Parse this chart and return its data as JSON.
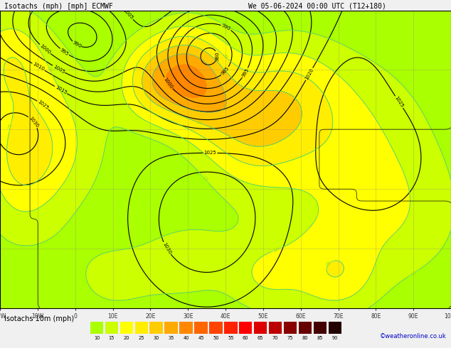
{
  "title_line1": "Isotachs (mph) [mph] ECMWF",
  "title_line2": "We 05-06-2024 00:00 UTC (T12+180)",
  "legend_title": "Isotachs 10m (mph)",
  "credit": "©weatheronline.co.uk",
  "legend_values": [
    10,
    15,
    20,
    25,
    30,
    35,
    40,
    45,
    50,
    55,
    60,
    65,
    70,
    75,
    80,
    85,
    90
  ],
  "legend_colors": [
    "#aaff00",
    "#ccff00",
    "#ffff00",
    "#ffee00",
    "#ffcc00",
    "#ffaa00",
    "#ff8800",
    "#ff6600",
    "#ff4400",
    "#ff2200",
    "#ff0000",
    "#dd0000",
    "#bb0000",
    "#880000",
    "#660000",
    "#440000",
    "#220000"
  ],
  "sea_color": "#d8d8d8",
  "land_color": "#e8e8e8",
  "green_land_color": "#c8e8a0",
  "grid_color": "#888888",
  "isobar_color": "#000000",
  "isotach_line_color_low": "#aadd00",
  "isotach_line_color_cyan": "#00cccc",
  "title_bg": "#cccccc",
  "bottom_bg": "#f0f0f0",
  "title_fontsize": 7.0,
  "legend_fontsize": 7.0,
  "figure_width": 6.34,
  "figure_height": 4.9,
  "dpi": 100,
  "xlim": [
    -20,
    100
  ],
  "ylim": [
    20,
    70
  ],
  "xtick_step": 10,
  "ytick_step": 10
}
